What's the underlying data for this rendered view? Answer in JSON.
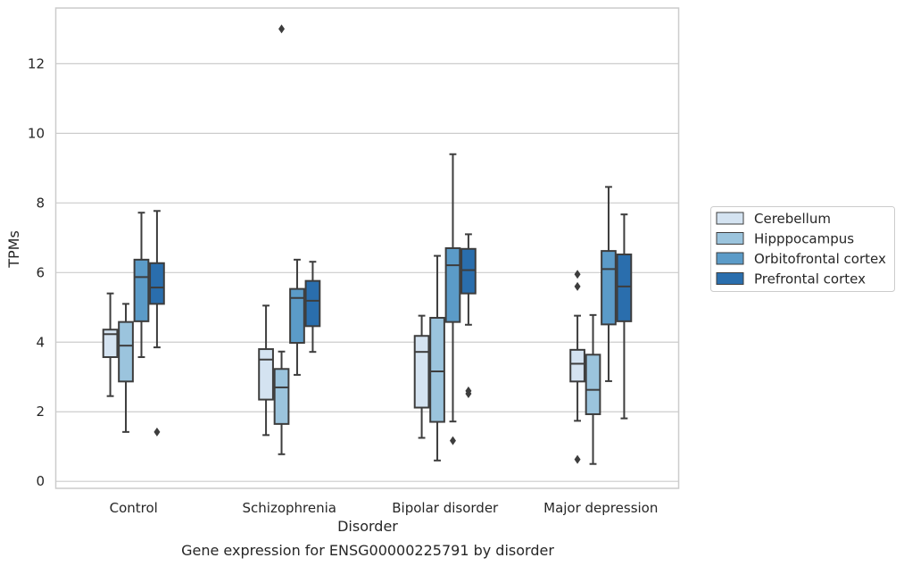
{
  "chart_data": {
    "type": "box",
    "xlabel": "Disorder",
    "ylabel": "TPMs",
    "caption": "Gene expression for ENSG00000225791 by disorder",
    "categories": [
      "Control",
      "Schizophrenia",
      "Bipolar disorder",
      "Major depression"
    ],
    "ylim": [
      -0.2,
      13.6
    ],
    "yticks": [
      "0",
      "2",
      "4",
      "6",
      "8",
      "10",
      "12"
    ],
    "grid": true,
    "legend_position": "right",
    "series": [
      {
        "name": "Cerebellum",
        "color": "#d4e3f1",
        "boxes": [
          {
            "whislo": 2.45,
            "q1": 3.57,
            "med": 4.23,
            "q3": 4.36,
            "whishi": 5.4,
            "fliers": []
          },
          {
            "whislo": 1.33,
            "q1": 2.35,
            "med": 3.5,
            "q3": 3.8,
            "whishi": 5.05,
            "fliers": []
          },
          {
            "whislo": 1.25,
            "q1": 2.12,
            "med": 3.72,
            "q3": 4.18,
            "whishi": 4.76,
            "fliers": []
          },
          {
            "whislo": 1.74,
            "q1": 2.87,
            "med": 3.38,
            "q3": 3.78,
            "whishi": 4.76,
            "fliers": [
              5.95,
              5.6,
              0.63
            ]
          }
        ]
      },
      {
        "name": "Hipppocampus",
        "color": "#9bc4dd",
        "boxes": [
          {
            "whislo": 1.42,
            "q1": 2.87,
            "med": 3.9,
            "q3": 4.58,
            "whishi": 5.1,
            "fliers": []
          },
          {
            "whislo": 0.78,
            "q1": 1.65,
            "med": 2.7,
            "q3": 3.23,
            "whishi": 3.73,
            "fliers": [
              13.0
            ]
          },
          {
            "whislo": 0.6,
            "q1": 1.71,
            "med": 3.16,
            "q3": 4.7,
            "whishi": 6.48,
            "fliers": []
          },
          {
            "whislo": 0.5,
            "q1": 1.93,
            "med": 2.63,
            "q3": 3.64,
            "whishi": 4.78,
            "fliers": []
          }
        ]
      },
      {
        "name": "Orbitofrontal cortex",
        "color": "#5b9bc8",
        "boxes": [
          {
            "whislo": 3.57,
            "q1": 4.6,
            "med": 5.87,
            "q3": 6.37,
            "whishi": 7.72,
            "fliers": []
          },
          {
            "whislo": 3.06,
            "q1": 3.98,
            "med": 5.27,
            "q3": 5.53,
            "whishi": 6.37,
            "fliers": []
          },
          {
            "whislo": 1.72,
            "q1": 4.58,
            "med": 6.21,
            "q3": 6.7,
            "whishi": 9.4,
            "fliers": [
              1.17
            ]
          },
          {
            "whislo": 2.88,
            "q1": 4.51,
            "med": 6.1,
            "q3": 6.62,
            "whishi": 8.46,
            "fliers": []
          }
        ]
      },
      {
        "name": "Prefrontal cortex",
        "color": "#2a6ead",
        "boxes": [
          {
            "whislo": 3.85,
            "q1": 5.1,
            "med": 5.57,
            "q3": 6.27,
            "whishi": 7.77,
            "fliers": [
              1.42
            ]
          },
          {
            "whislo": 3.72,
            "q1": 4.46,
            "med": 5.19,
            "q3": 5.76,
            "whishi": 6.31,
            "fliers": []
          },
          {
            "whislo": 4.5,
            "q1": 5.4,
            "med": 6.07,
            "q3": 6.68,
            "whishi": 7.1,
            "fliers": [
              2.6,
              2.52
            ]
          },
          {
            "whislo": 1.81,
            "q1": 4.6,
            "med": 5.6,
            "q3": 6.52,
            "whishi": 7.67,
            "fliers": []
          }
        ]
      }
    ]
  }
}
